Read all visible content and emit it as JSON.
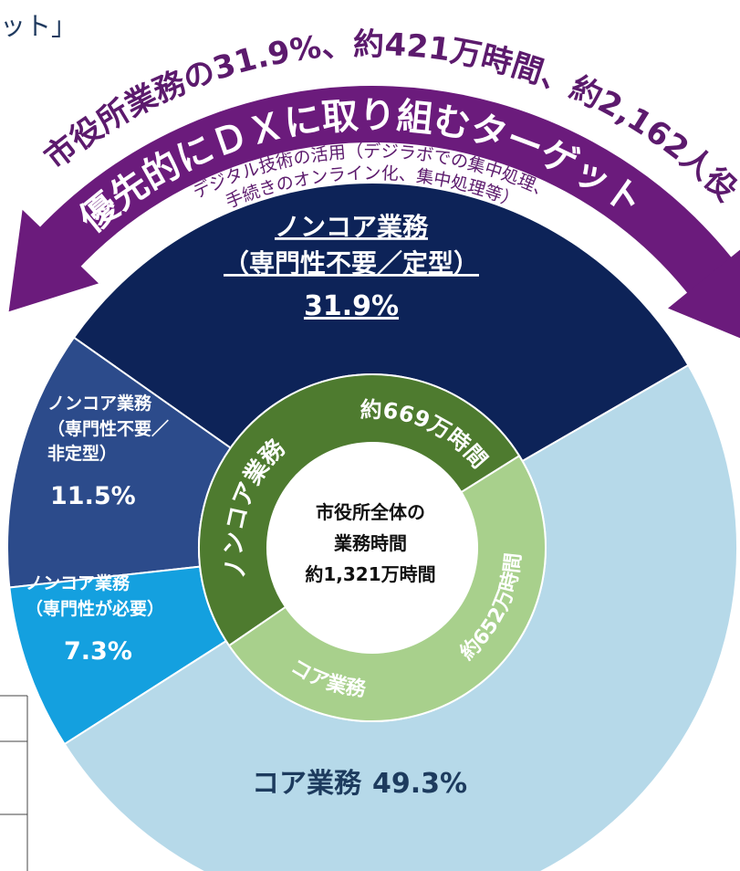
{
  "chart_data": {
    "type": "donut",
    "top_left_text": "ット」",
    "arc_headline": "市役所業務の31.9%、約421万時間、約2,162人役",
    "arc_banner": "優先的にＤＸに取り組むターゲット",
    "arc_note_lines": [
      "デジタル技術の活用（デジラボでの集中処理、",
      "手続きのオンライン化、集中処理等）"
    ],
    "center_lines": [
      "市役所全体の",
      "業務時間",
      "約1,321万時間"
    ],
    "outer": {
      "categories": [
        [
          "ノンコア業務",
          "（専門性不要／定型）"
        ],
        [
          "ノンコア業務",
          "（専門性不要／",
          "非定型）"
        ],
        [
          "ノンコア業務",
          "（専門性が必要）"
        ],
        [
          "コア業務"
        ]
      ],
      "values": [
        31.9,
        11.5,
        7.3,
        49.3
      ],
      "value_labels": [
        "31.9%",
        "11.5%",
        "7.3%",
        "49.3%"
      ],
      "colors": [
        "#0d2358",
        "#2c4b8b",
        "#14a0df",
        "#b6d9e9"
      ]
    },
    "inner": {
      "categories": [
        "ノンコア業務",
        "コア業務"
      ],
      "values": [
        669,
        652
      ],
      "value_labels": [
        "約669万時間",
        "約652万時間"
      ],
      "colors": [
        "#4e7b2f",
        "#a8d08c"
      ]
    }
  }
}
